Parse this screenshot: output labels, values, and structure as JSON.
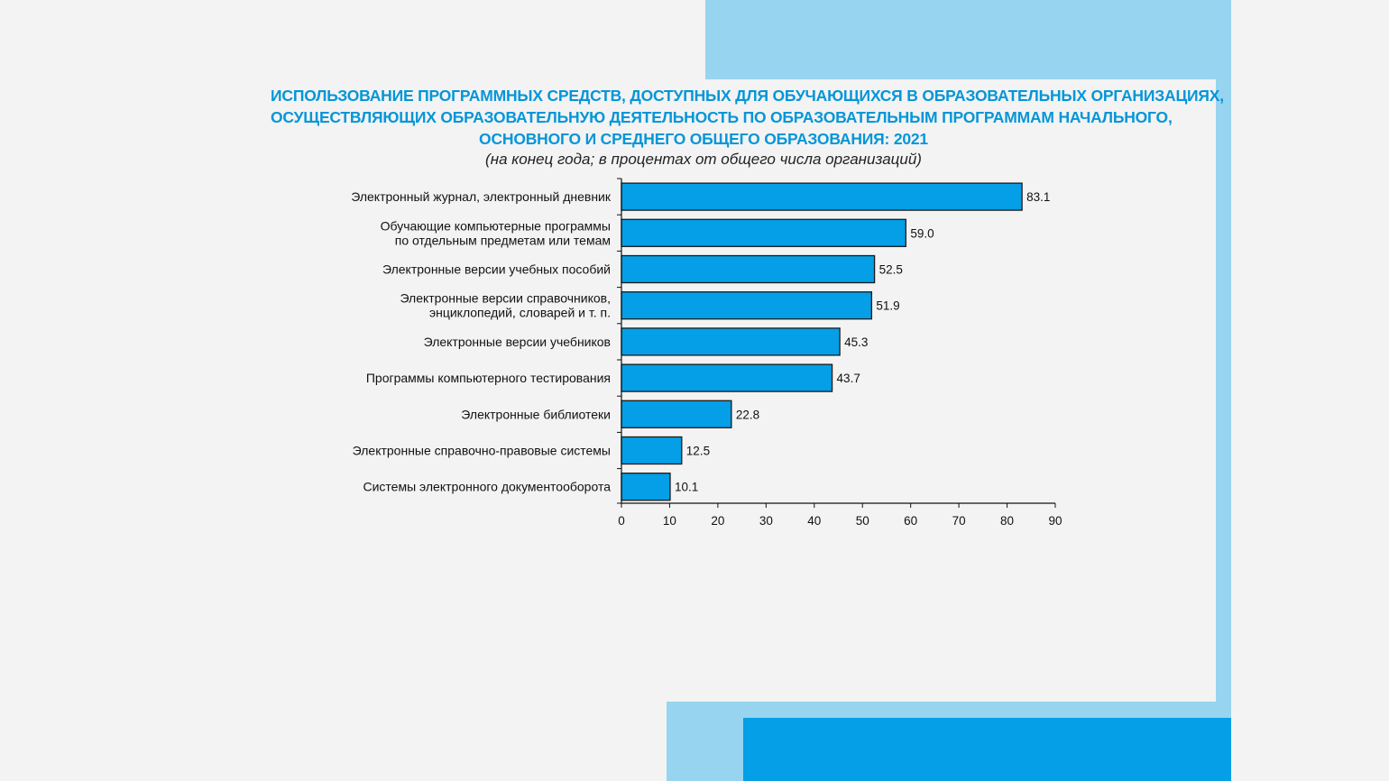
{
  "colors": {
    "background": "#f3f3f3",
    "title": "#0596d8",
    "bar_fill": "#049fe6",
    "bar_stroke": "#1a1a1a",
    "decor_light": "#97d4ef",
    "decor_dark": "#049fe6"
  },
  "header": {
    "title_lines": [
      "ИСПОЛЬЗОВАНИЕ ПРОГРАММНЫХ СРЕДСТВ, ДОСТУПНЫХ ДЛЯ ОБУЧАЮЩИХСЯ В ОБРАЗОВАТЕЛЬНЫХ ОРГАНИЗАЦИЯХ,",
      "ОСУЩЕСТВЛЯЮЩИХ ОБРАЗОВАТЕЛЬНУЮ ДЕЯТЕЛЬНОСТЬ ПО ОБРАЗОВАТЕЛЬНЫМ ПРОГРАММАМ НАЧАЛЬНОГО,",
      "ОСНОВНОГО И СРЕДНЕГО ОБЩЕГО ОБРАЗОВАНИЯ: 2021"
    ],
    "subtitle": "(на конец года; в процентах от общего числа организаций)"
  },
  "chart_data": {
    "type": "bar",
    "orientation": "horizontal",
    "categories": [
      [
        "Электронный журнал, электронный дневник"
      ],
      [
        "Обучающие компьютерные программы",
        "по отдельным предметам или темам"
      ],
      [
        "Электронные версии учебных пособий"
      ],
      [
        "Электронные версии справочников,",
        "энциклопедий, словарей и т. п."
      ],
      [
        "Электронные версии учебников"
      ],
      [
        "Программы компьютерного тестирования"
      ],
      [
        "Электронные библиотеки"
      ],
      [
        "Электронные справочно-правовые системы"
      ],
      [
        "Системы электронного документооборота"
      ]
    ],
    "values": [
      83.1,
      59.0,
      52.5,
      51.9,
      45.3,
      43.7,
      22.8,
      12.5,
      10.1
    ],
    "value_labels": [
      "83.1",
      "59.0",
      "52.5",
      "51.9",
      "45.3",
      "43.7",
      "22.8",
      "12.5",
      "10.1"
    ],
    "xlim": [
      0,
      90
    ],
    "xticks": [
      0,
      10,
      20,
      30,
      40,
      50,
      60,
      70,
      80,
      90
    ],
    "grid": false,
    "legend": "none"
  }
}
